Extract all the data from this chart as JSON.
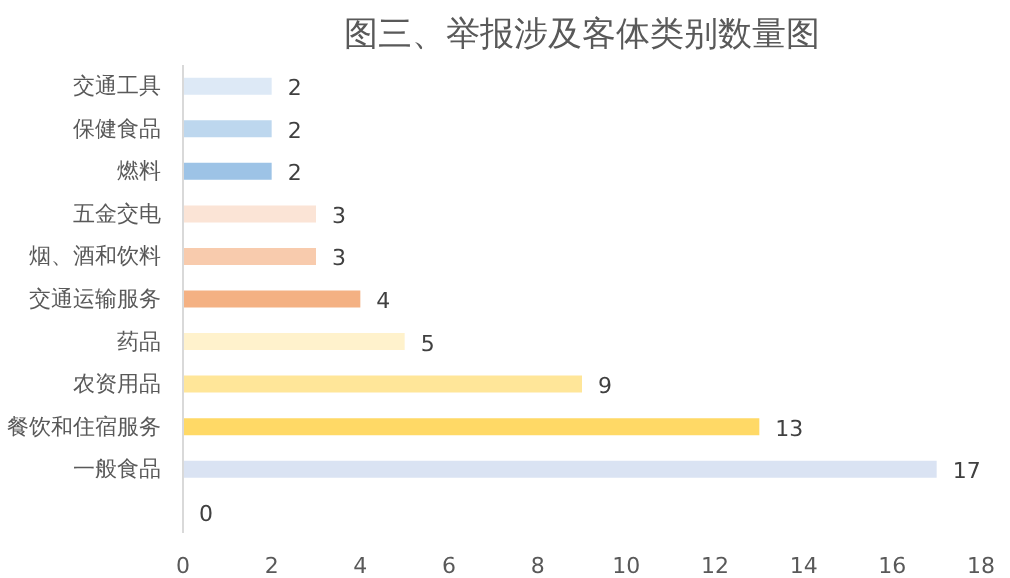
{
  "chart_data": {
    "type": "bar",
    "orientation": "horizontal",
    "title": "图三、举报涉及客体类别数量图",
    "categories": [
      "交通工具",
      "保健食品",
      "燃料",
      "五金交电",
      "烟、酒和饮料",
      "交通运输服务",
      "药品",
      "农资用品",
      "餐饮和住宿服务",
      "一般食品",
      null
    ],
    "values": [
      2,
      2,
      2,
      3,
      3,
      4,
      5,
      9,
      13,
      17,
      0
    ],
    "colors": [
      "#dde9f6",
      "#bdd7ee",
      "#9dc3e6",
      "#fbe4d6",
      "#f8cbad",
      "#f4b183",
      "#fff2cc",
      "#ffe699",
      "#ffd966",
      "#dae3f3",
      "#dae3f3"
    ],
    "xlim": [
      0,
      18
    ],
    "xticks": [
      0,
      2,
      4,
      6,
      8,
      10,
      12,
      14,
      16,
      18
    ],
    "data_labels": true,
    "grid": false
  }
}
